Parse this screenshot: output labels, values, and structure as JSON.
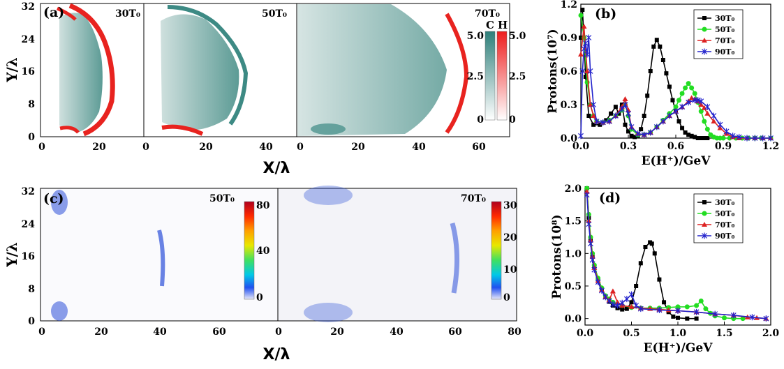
{
  "figure": {
    "panel_a": {
      "label": "(a)",
      "ylabel": "Y/λ",
      "xlabel": "X/λ",
      "ylim": [
        0,
        32
      ],
      "yticks": [
        "0",
        "8",
        "16",
        "24",
        "32"
      ],
      "subpanels": [
        {
          "time_label": "30T₀",
          "xticks": [
            "0",
            "20"
          ],
          "xlim": [
            0,
            34
          ]
        },
        {
          "time_label": "50T₀",
          "xticks": [
            "0",
            "20",
            "40"
          ],
          "xlim": [
            0,
            46
          ]
        },
        {
          "time_label": "70T₀",
          "xticks": [
            "0",
            "20",
            "40",
            "60"
          ],
          "xlim": [
            0,
            72
          ]
        }
      ],
      "colorbars": [
        {
          "label": "C",
          "ticks": [
            "5.0",
            "2.5",
            "0"
          ],
          "color_top": "#2e7f7a",
          "color_bottom": "#ffffff"
        },
        {
          "label": "H",
          "ticks": [
            "5.0",
            "2.5",
            "0"
          ],
          "color_top": "#ee1c1c",
          "color_bottom": "#ffffff"
        }
      ],
      "colors": {
        "carbon": "#3d8a84",
        "hydrogen": "#e8231f"
      }
    },
    "panel_c": {
      "label": "(c)",
      "ylabel": "Y/λ",
      "xlabel": "X/λ",
      "ylim": [
        0,
        32
      ],
      "yticks": [
        "0",
        "8",
        "16",
        "24",
        "32"
      ],
      "subpanels": [
        {
          "time_label": "50T₀",
          "xticks": [
            "0",
            "20",
            "40",
            "60"
          ],
          "xlim": [
            0,
            80
          ],
          "colorbar_ticks": [
            "80",
            "40",
            "0"
          ]
        },
        {
          "time_label": "70T₀",
          "xticks": [
            "0",
            "20",
            "40",
            "60",
            "80"
          ],
          "xlim": [
            0,
            80
          ],
          "colorbar_ticks": [
            "30",
            "20",
            "10",
            "0"
          ]
        }
      ]
    }
  },
  "chart_data": [
    {
      "panel": "(b)",
      "type": "line",
      "xlabel": "E(H⁺)/GeV",
      "ylabel": "Protons(10⁷)",
      "xlim": [
        0,
        1.2
      ],
      "ylim": [
        0,
        1.2
      ],
      "xticks": [
        "0.0",
        "0.3",
        "0.6",
        "0.9",
        "1.2"
      ],
      "yticks": [
        "0.0",
        "0.3",
        "0.6",
        "0.9",
        "1.2"
      ],
      "legend": "top-right",
      "series": [
        {
          "name": "30T₀",
          "color": "#000000",
          "marker": "square",
          "x": [
            0.0,
            0.01,
            0.02,
            0.03,
            0.05,
            0.08,
            0.12,
            0.16,
            0.19,
            0.22,
            0.24,
            0.26,
            0.28,
            0.3,
            0.32,
            0.34,
            0.36,
            0.38,
            0.4,
            0.42,
            0.44,
            0.46,
            0.48,
            0.5,
            0.52,
            0.54,
            0.56,
            0.58,
            0.6,
            0.62,
            0.64,
            0.66,
            0.68,
            0.7,
            0.72,
            0.74,
            0.76,
            0.78,
            0.8
          ],
          "y": [
            0.9,
            1.15,
            0.9,
            0.55,
            0.2,
            0.12,
            0.12,
            0.16,
            0.22,
            0.28,
            0.22,
            0.3,
            0.12,
            0.06,
            0.02,
            0.01,
            0.02,
            0.08,
            0.2,
            0.38,
            0.6,
            0.82,
            0.88,
            0.82,
            0.7,
            0.58,
            0.46,
            0.34,
            0.24,
            0.15,
            0.09,
            0.05,
            0.03,
            0.02,
            0.01,
            0.0,
            0.0,
            0.0,
            0.0
          ]
        },
        {
          "name": "50T₀",
          "color": "#22dd22",
          "marker": "circle",
          "x": [
            0.0,
            0.02,
            0.04,
            0.06,
            0.08,
            0.1,
            0.14,
            0.18,
            0.22,
            0.26,
            0.28,
            0.3,
            0.32,
            0.36,
            0.4,
            0.44,
            0.48,
            0.52,
            0.56,
            0.6,
            0.62,
            0.64,
            0.66,
            0.68,
            0.7,
            0.72,
            0.74,
            0.76,
            0.78,
            0.8,
            0.82,
            0.84,
            0.86,
            0.88,
            0.9,
            0.94,
            0.98,
            1.02,
            1.06,
            1.1,
            1.14,
            1.2
          ],
          "y": [
            1.1,
            0.9,
            0.5,
            0.3,
            0.2,
            0.15,
            0.14,
            0.16,
            0.2,
            0.25,
            0.3,
            0.2,
            0.08,
            0.03,
            0.03,
            0.05,
            0.1,
            0.16,
            0.22,
            0.28,
            0.34,
            0.4,
            0.45,
            0.49,
            0.45,
            0.4,
            0.32,
            0.24,
            0.15,
            0.08,
            0.03,
            0.01,
            0.0,
            0.0,
            0.0,
            0.0,
            0.0,
            0.0,
            0.0,
            0.0,
            0.0,
            0.0
          ]
        },
        {
          "name": "70T₀",
          "color": "#dd2222",
          "marker": "triangle",
          "x": [
            0.0,
            0.02,
            0.04,
            0.06,
            0.08,
            0.1,
            0.14,
            0.18,
            0.22,
            0.26,
            0.28,
            0.3,
            0.32,
            0.36,
            0.4,
            0.44,
            0.48,
            0.52,
            0.56,
            0.6,
            0.64,
            0.68,
            0.7,
            0.72,
            0.74,
            0.76,
            0.78,
            0.8,
            0.84,
            0.88,
            0.92,
            0.96,
            1.0,
            1.05,
            1.1,
            1.15,
            1.2
          ],
          "y": [
            0.75,
            1.0,
            0.6,
            0.3,
            0.2,
            0.15,
            0.14,
            0.15,
            0.2,
            0.28,
            0.35,
            0.25,
            0.1,
            0.04,
            0.03,
            0.05,
            0.1,
            0.15,
            0.2,
            0.24,
            0.28,
            0.33,
            0.36,
            0.35,
            0.33,
            0.3,
            0.27,
            0.22,
            0.15,
            0.09,
            0.04,
            0.01,
            0.0,
            0.0,
            0.0,
            0.0,
            0.0
          ]
        },
        {
          "name": "90T₀",
          "color": "#2222cc",
          "marker": "star",
          "x": [
            0.0,
            0.01,
            0.02,
            0.03,
            0.04,
            0.05,
            0.06,
            0.08,
            0.1,
            0.14,
            0.18,
            0.22,
            0.26,
            0.28,
            0.3,
            0.32,
            0.36,
            0.4,
            0.44,
            0.48,
            0.52,
            0.56,
            0.6,
            0.64,
            0.68,
            0.72,
            0.74,
            0.76,
            0.8,
            0.84,
            0.88,
            0.92,
            0.96,
            1.0,
            1.05,
            1.1,
            1.15,
            1.2
          ],
          "y": [
            0.02,
            0.6,
            0.8,
            0.85,
            0.75,
            0.9,
            0.6,
            0.3,
            0.15,
            0.14,
            0.15,
            0.2,
            0.26,
            0.3,
            0.22,
            0.1,
            0.04,
            0.03,
            0.05,
            0.1,
            0.15,
            0.2,
            0.24,
            0.28,
            0.32,
            0.34,
            0.34,
            0.33,
            0.28,
            0.2,
            0.12,
            0.06,
            0.02,
            0.01,
            0.0,
            0.0,
            0.0,
            0.0
          ]
        }
      ]
    },
    {
      "panel": "(d)",
      "type": "line",
      "xlabel": "E(H⁺)/GeV",
      "ylabel": "Protons(10⁸)",
      "xlim": [
        0,
        2.0
      ],
      "ylim": [
        -0.1,
        2.0
      ],
      "xticks": [
        "0.0",
        "0.5",
        "1.0",
        "1.5",
        "2.0"
      ],
      "yticks": [
        "0.0",
        "0.5",
        "1.0",
        "1.5",
        "2.0"
      ],
      "legend": "top-right",
      "series": [
        {
          "name": "30T₀",
          "color": "#000000",
          "marker": "square",
          "x": [
            0.02,
            0.04,
            0.06,
            0.08,
            0.1,
            0.14,
            0.18,
            0.22,
            0.26,
            0.3,
            0.35,
            0.4,
            0.45,
            0.5,
            0.55,
            0.6,
            0.65,
            0.7,
            0.72,
            0.75,
            0.8,
            0.85,
            0.9,
            0.95,
            1.0,
            1.1,
            1.2
          ],
          "y": [
            2.0,
            1.55,
            1.2,
            0.95,
            0.8,
            0.6,
            0.45,
            0.33,
            0.26,
            0.2,
            0.16,
            0.14,
            0.15,
            0.25,
            0.5,
            0.85,
            1.1,
            1.17,
            1.15,
            1.0,
            0.6,
            0.25,
            0.1,
            0.03,
            0.01,
            0.0,
            0.0
          ]
        },
        {
          "name": "50T₀",
          "color": "#22dd22",
          "marker": "circle",
          "x": [
            0.02,
            0.04,
            0.06,
            0.08,
            0.1,
            0.14,
            0.18,
            0.22,
            0.26,
            0.3,
            0.4,
            0.5,
            0.6,
            0.7,
            0.8,
            0.9,
            1.0,
            1.1,
            1.2,
            1.25,
            1.3,
            1.35,
            1.4,
            1.5,
            1.6,
            1.7
          ],
          "y": [
            2.0,
            1.6,
            1.25,
            1.0,
            0.82,
            0.62,
            0.47,
            0.35,
            0.3,
            0.25,
            0.2,
            0.17,
            0.16,
            0.16,
            0.16,
            0.17,
            0.18,
            0.18,
            0.2,
            0.27,
            0.15,
            0.08,
            0.04,
            0.01,
            0.0,
            0.0
          ]
        },
        {
          "name": "70T₀",
          "color": "#dd2222",
          "marker": "triangle",
          "x": [
            0.02,
            0.04,
            0.06,
            0.08,
            0.1,
            0.14,
            0.18,
            0.22,
            0.26,
            0.3,
            0.35,
            0.4,
            0.5,
            0.6,
            0.7,
            0.8,
            0.9,
            1.0,
            1.2,
            1.4,
            1.6,
            1.75,
            1.85,
            1.95
          ],
          "y": [
            1.95,
            1.5,
            1.2,
            0.95,
            0.78,
            0.58,
            0.44,
            0.33,
            0.28,
            0.42,
            0.25,
            0.2,
            0.18,
            0.16,
            0.15,
            0.14,
            0.13,
            0.12,
            0.1,
            0.07,
            0.05,
            0.02,
            0.01,
            0.0
          ]
        },
        {
          "name": "90T₀",
          "color": "#2222cc",
          "marker": "star",
          "x": [
            0.02,
            0.04,
            0.06,
            0.08,
            0.1,
            0.14,
            0.18,
            0.22,
            0.26,
            0.3,
            0.35,
            0.4,
            0.45,
            0.5,
            0.55,
            0.6,
            0.8,
            1.0,
            1.2,
            1.4,
            1.6,
            1.8,
            1.95
          ],
          "y": [
            1.9,
            1.45,
            1.15,
            0.9,
            0.75,
            0.56,
            0.43,
            0.33,
            0.27,
            0.22,
            0.2,
            0.24,
            0.3,
            0.37,
            0.2,
            0.15,
            0.13,
            0.12,
            0.1,
            0.07,
            0.05,
            0.02,
            0.0
          ]
        }
      ]
    }
  ]
}
